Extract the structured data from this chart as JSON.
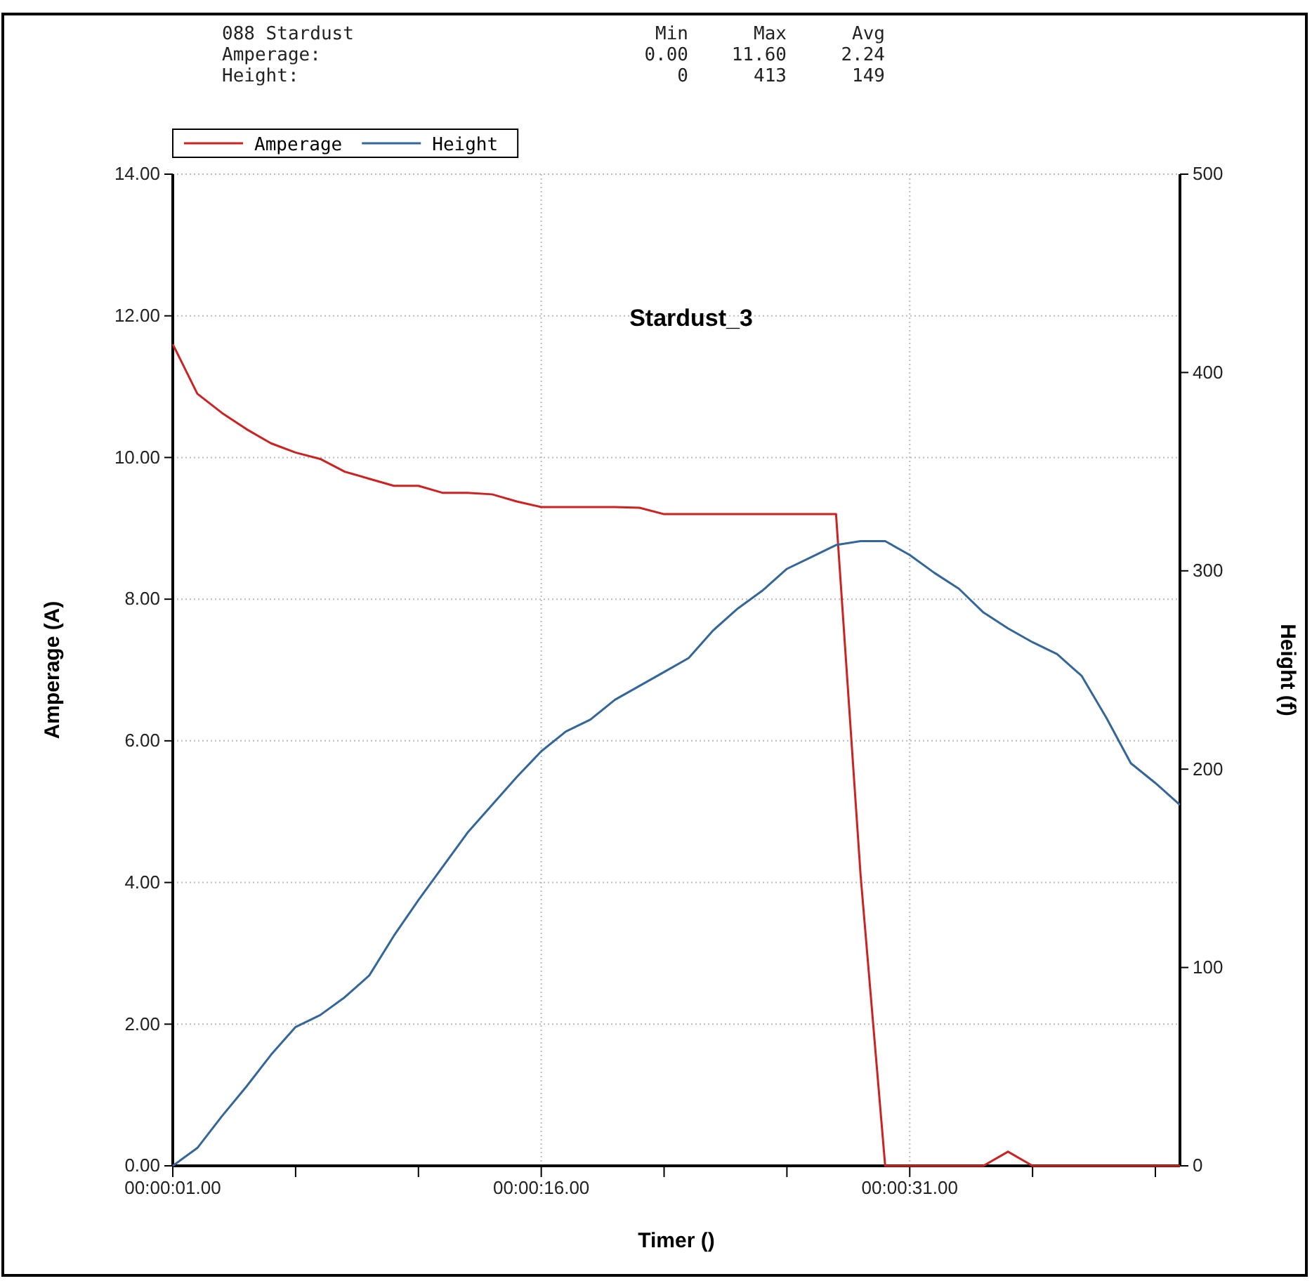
{
  "chart_data": {
    "type": "line",
    "xlabel": "Timer ()",
    "ylabel": "Amperage (A)",
    "y2label": "Height (f)",
    "annotations": [
      "088 Stardust",
      "Min",
      "Max",
      "Avg",
      "Amperage:",
      "0.00",
      "11.60",
      "2.24",
      "Height:",
      "0",
      "413",
      "149",
      "Stardust_3"
    ],
    "categories": [
      "00:00:01.00",
      null,
      null,
      null,
      null,
      null,
      null,
      null,
      null,
      null,
      null,
      null,
      null,
      null,
      null,
      "00:00:16.00",
      null,
      null,
      null,
      null,
      null,
      null,
      null,
      null,
      null,
      null,
      null,
      null,
      null,
      null,
      "00:00:31.00",
      null,
      null,
      null,
      null,
      null,
      null,
      null,
      null,
      null,
      null,
      null
    ],
    "ylim": [
      0,
      14
    ],
    "yticks": [
      {
        "value": 0,
        "label": "0.00"
      },
      {
        "value": 2,
        "label": "2.00"
      },
      {
        "value": 4,
        "label": "4.00"
      },
      {
        "value": 6,
        "label": "6.00"
      },
      {
        "value": 8,
        "label": "8.00"
      },
      {
        "value": 10,
        "label": "10.00"
      },
      {
        "value": 12,
        "label": "12.00"
      },
      {
        "value": 14,
        "label": "14.00"
      }
    ],
    "y2lim": [
      0,
      500
    ],
    "y2ticks": [
      0,
      100,
      200,
      300,
      400,
      500
    ],
    "grid": true,
    "legend": "top left",
    "series": [
      {
        "name": "Amperage",
        "color": "#cc2222",
        "values": [
          11.6,
          10.9,
          10.63,
          10.4,
          10.2,
          10.07,
          9.98,
          9.8,
          9.7,
          9.6,
          9.6,
          9.5,
          9.5,
          9.48,
          9.38,
          9.3,
          9.3,
          9.3,
          9.3,
          9.29,
          9.2,
          9.2,
          9.2,
          9.2,
          9.2,
          9.2,
          9.2,
          9.2,
          4.1,
          0,
          0,
          0,
          0,
          0,
          0.2,
          0,
          0,
          0,
          0,
          0,
          0,
          0
        ]
      },
      {
        "name": "Height",
        "color": "#336699",
        "axis": "y2",
        "values": [
          0,
          9,
          25,
          40,
          56,
          70,
          76,
          85,
          96,
          116,
          134,
          151,
          168,
          182,
          196,
          209,
          219,
          225,
          235,
          242,
          249,
          256,
          270,
          281,
          290,
          301,
          307,
          313,
          315,
          315,
          308,
          299,
          291,
          279,
          271,
          264,
          258,
          247,
          226,
          203,
          193,
          182
        ]
      }
    ]
  }
}
